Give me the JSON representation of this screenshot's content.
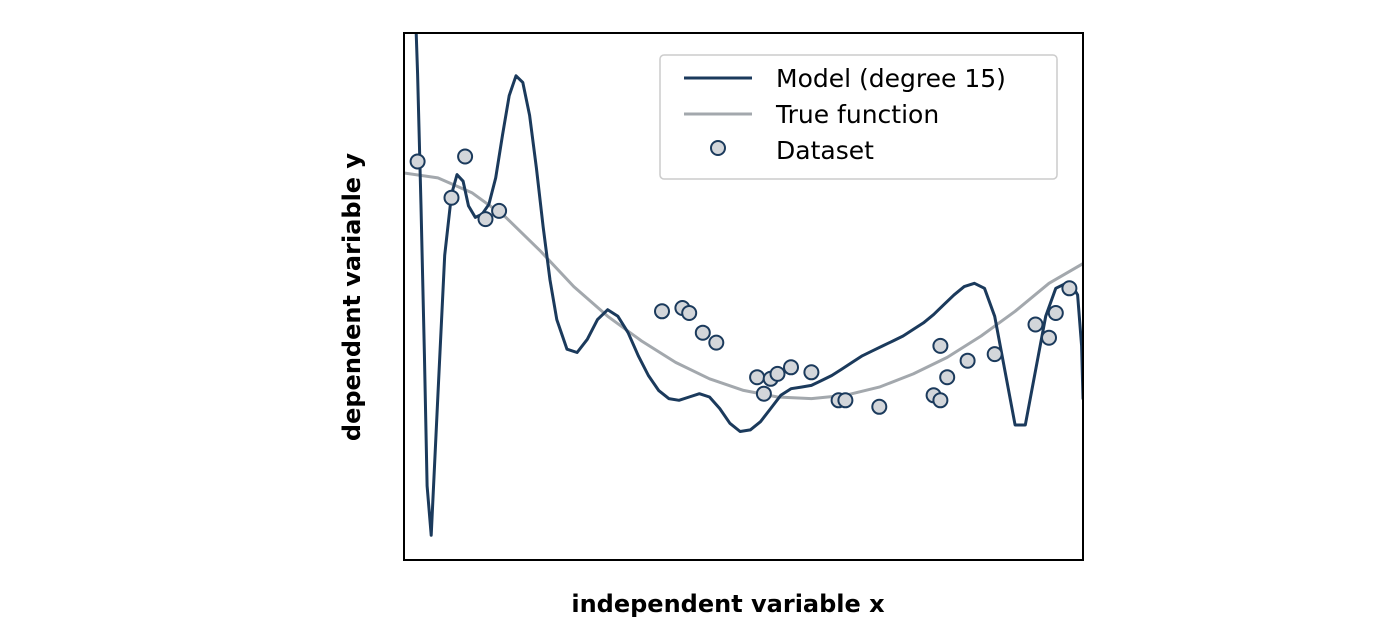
{
  "chart_data": {
    "type": "scatter",
    "title": "",
    "xlabel": "independent variable x",
    "ylabel": "dependent variable y",
    "xlim": [
      0,
      1
    ],
    "ylim": [
      -1.6,
      1.6
    ],
    "grid": false,
    "ticks_shown": false,
    "legend": {
      "placement": "top-right",
      "entries": [
        {
          "label": "Model (degree 15)",
          "kind": "line",
          "color": "#1b3a5c"
        },
        {
          "label": "True function",
          "kind": "line",
          "color": "#a3a8ad"
        },
        {
          "label": "Dataset",
          "kind": "marker",
          "color": "#d3d6da"
        }
      ]
    },
    "series": [
      {
        "name": "Model (degree 15)",
        "kind": "line",
        "color": "#1b3a5c",
        "x": [
          0.018,
          0.02,
          0.025,
          0.03,
          0.034,
          0.04,
          0.05,
          0.06,
          0.07,
          0.078,
          0.087,
          0.095,
          0.105,
          0.115,
          0.125,
          0.135,
          0.145,
          0.155,
          0.165,
          0.175,
          0.185,
          0.195,
          0.205,
          0.215,
          0.225,
          0.24,
          0.255,
          0.27,
          0.285,
          0.3,
          0.315,
          0.33,
          0.345,
          0.36,
          0.375,
          0.39,
          0.405,
          0.42,
          0.435,
          0.45,
          0.465,
          0.48,
          0.495,
          0.51,
          0.525,
          0.54,
          0.555,
          0.57,
          0.585,
          0.6,
          0.615,
          0.63,
          0.645,
          0.66,
          0.675,
          0.69,
          0.705,
          0.72,
          0.735,
          0.75,
          0.765,
          0.78,
          0.795,
          0.81,
          0.825,
          0.84,
          0.855,
          0.87,
          0.885,
          0.9,
          0.915,
          0.93,
          0.945,
          0.96,
          0.975,
          0.985,
          0.992,
          0.998,
          1.0
        ],
        "y": [
          1.6,
          1.35,
          0.55,
          -0.35,
          -1.15,
          -1.45,
          -0.6,
          0.25,
          0.62,
          0.74,
          0.7,
          0.55,
          0.48,
          0.5,
          0.56,
          0.72,
          0.98,
          1.22,
          1.34,
          1.3,
          1.1,
          0.78,
          0.42,
          0.1,
          -0.14,
          -0.32,
          -0.34,
          -0.26,
          -0.14,
          -0.08,
          -0.12,
          -0.22,
          -0.36,
          -0.48,
          -0.57,
          -0.62,
          -0.63,
          -0.61,
          -0.59,
          -0.61,
          -0.68,
          -0.77,
          -0.82,
          -0.81,
          -0.76,
          -0.68,
          -0.6,
          -0.56,
          -0.55,
          -0.54,
          -0.51,
          -0.48,
          -0.44,
          -0.4,
          -0.36,
          -0.33,
          -0.3,
          -0.27,
          -0.24,
          -0.2,
          -0.16,
          -0.11,
          -0.05,
          0.01,
          0.06,
          0.08,
          0.05,
          -0.12,
          -0.45,
          -0.78,
          -0.78,
          -0.45,
          -0.12,
          0.05,
          0.08,
          0.06,
          0.01,
          -0.3,
          -0.62
        ]
      },
      {
        "name": "True function",
        "kind": "line",
        "color": "#a3a8ad",
        "x": [
          0.0,
          0.05,
          0.1,
          0.15,
          0.2,
          0.25,
          0.3,
          0.35,
          0.4,
          0.45,
          0.5,
          0.55,
          0.6,
          0.65,
          0.7,
          0.75,
          0.8,
          0.85,
          0.9,
          0.95,
          1.0
        ],
        "y": [
          0.75,
          0.72,
          0.63,
          0.48,
          0.28,
          0.06,
          -0.12,
          -0.27,
          -0.4,
          -0.5,
          -0.57,
          -0.61,
          -0.62,
          -0.6,
          -0.55,
          -0.47,
          -0.37,
          -0.24,
          -0.09,
          0.08,
          0.2
        ]
      },
      {
        "name": "Dataset",
        "kind": "scatter",
        "color": "#d3d6da",
        "x": [
          0.02,
          0.07,
          0.09,
          0.12,
          0.14,
          0.38,
          0.41,
          0.42,
          0.44,
          0.46,
          0.52,
          0.53,
          0.54,
          0.55,
          0.57,
          0.6,
          0.64,
          0.65,
          0.7,
          0.78,
          0.79,
          0.79,
          0.8,
          0.83,
          0.87,
          0.93,
          0.95,
          0.96,
          0.98
        ],
        "y": [
          0.82,
          0.6,
          0.85,
          0.47,
          0.52,
          -0.09,
          -0.07,
          -0.1,
          -0.22,
          -0.28,
          -0.49,
          -0.59,
          -0.5,
          -0.47,
          -0.43,
          -0.46,
          -0.63,
          -0.63,
          -0.67,
          -0.6,
          -0.63,
          -0.3,
          -0.49,
          -0.39,
          -0.35,
          -0.17,
          -0.25,
          -0.1,
          0.05
        ]
      }
    ]
  }
}
